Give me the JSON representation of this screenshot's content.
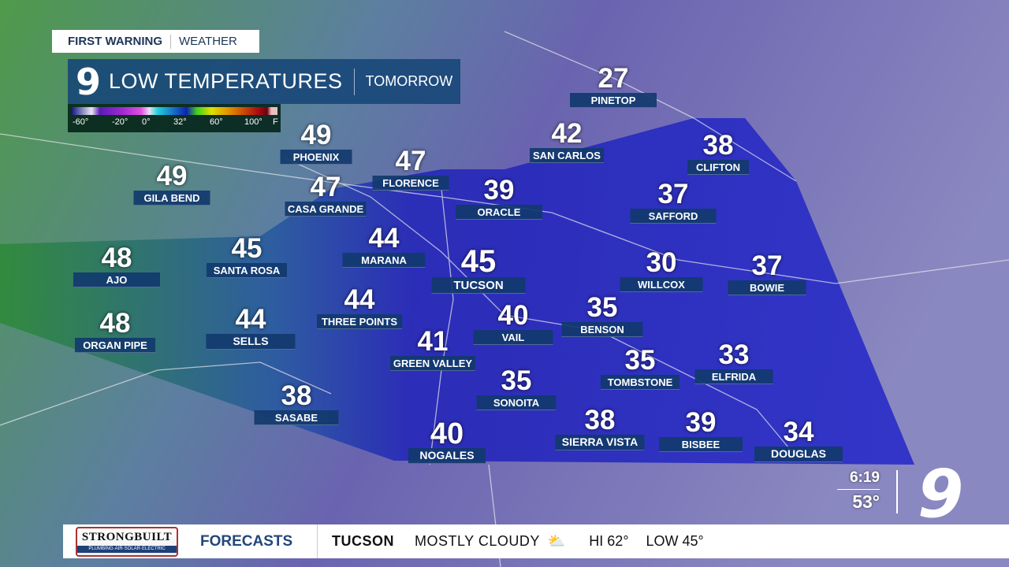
{
  "brand": {
    "first": "FIRST WARNING",
    "second": "WEATHER"
  },
  "title": {
    "logo": "9",
    "text": "LOW TEMPERATURES",
    "period": "TOMORROW"
  },
  "legend": {
    "ticks": [
      "-60°",
      "-20°",
      "0°",
      "32°",
      "60°",
      "100°",
      "F"
    ]
  },
  "cities": [
    {
      "name": "PINETOP",
      "temp": "27"
    },
    {
      "name": "SAN CARLOS",
      "temp": "42"
    },
    {
      "name": "CLIFTON",
      "temp": "38"
    },
    {
      "name": "PHOENIX",
      "temp": "49"
    },
    {
      "name": "FLORENCE",
      "temp": "47"
    },
    {
      "name": "GILA BEND",
      "temp": "49"
    },
    {
      "name": "CASA GRANDE",
      "temp": "47"
    },
    {
      "name": "ORACLE",
      "temp": "39"
    },
    {
      "name": "SAFFORD",
      "temp": "37"
    },
    {
      "name": "MARANA",
      "temp": "44"
    },
    {
      "name": "SANTA ROSA",
      "temp": "45"
    },
    {
      "name": "AJO",
      "temp": "48"
    },
    {
      "name": "TUCSON",
      "temp": "45"
    },
    {
      "name": "WILLCOX",
      "temp": "30"
    },
    {
      "name": "BOWIE",
      "temp": "37"
    },
    {
      "name": "THREE POINTS",
      "temp": "44"
    },
    {
      "name": "BENSON",
      "temp": "35"
    },
    {
      "name": "ORGAN PIPE",
      "temp": "48"
    },
    {
      "name": "SELLS",
      "temp": "44"
    },
    {
      "name": "VAIL",
      "temp": "40"
    },
    {
      "name": "GREEN VALLEY",
      "temp": "41"
    },
    {
      "name": "TOMBSTONE",
      "temp": "35"
    },
    {
      "name": "ELFRIDA",
      "temp": "33"
    },
    {
      "name": "SONOITA",
      "temp": "35"
    },
    {
      "name": "SASABE",
      "temp": "38"
    },
    {
      "name": "SIERRA VISTA",
      "temp": "38"
    },
    {
      "name": "BISBEE",
      "temp": "39"
    },
    {
      "name": "DOUGLAS",
      "temp": "34"
    },
    {
      "name": "NOGALES",
      "temp": "40"
    }
  ],
  "clock": {
    "time": "6:19",
    "temp": "53°"
  },
  "station_logo": "9",
  "ticker": {
    "sponsor": "STRONGBUILT",
    "sponsor_sub": "PLUMBING·AIR·SOLAR·ELECTRIC",
    "label": "FORECASTS",
    "city": "TUCSON",
    "condition": "MOSTLY CLOUDY",
    "icon": "partly-cloudy-icon",
    "hi": "HI 62°",
    "low": "LOW 45°"
  },
  "colors": {
    "region": "#2a2ec8",
    "label_bg": "#123a6e",
    "ticker_label": "#22477a"
  }
}
